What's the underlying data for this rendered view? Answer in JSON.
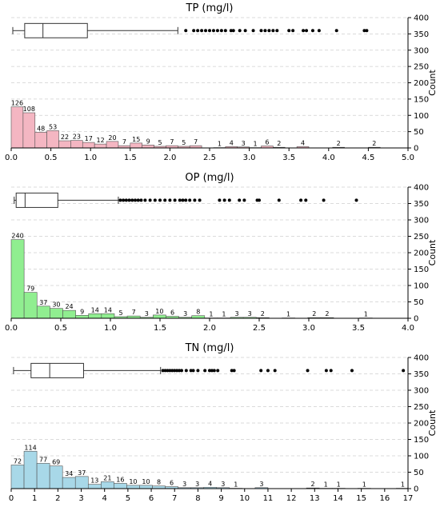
{
  "chart_data": [
    {
      "type": "bar",
      "title": "TP (mg/l)",
      "ylabel": "Count",
      "xlim": [
        0,
        5.0
      ],
      "ylim": [
        0,
        400
      ],
      "xticks": [
        "0.0",
        "0.5",
        "1.0",
        "1.5",
        "2.0",
        "2.5",
        "3.0",
        "3.5",
        "4.0",
        "4.5",
        "5.0"
      ],
      "yticks": [
        "0",
        "50",
        "100",
        "150",
        "200",
        "250",
        "300",
        "350",
        "400"
      ],
      "color": "#f4b6c2",
      "bin_width": 0.15,
      "bins": [
        {
          "x": 0.0,
          "count": 126
        },
        {
          "x": 0.15,
          "count": 108
        },
        {
          "x": 0.3,
          "count": 48
        },
        {
          "x": 0.45,
          "count": 53
        },
        {
          "x": 0.6,
          "count": 22
        },
        {
          "x": 0.75,
          "count": 23
        },
        {
          "x": 0.9,
          "count": 17
        },
        {
          "x": 1.05,
          "count": 12
        },
        {
          "x": 1.2,
          "count": 20
        },
        {
          "x": 1.35,
          "count": 7
        },
        {
          "x": 1.5,
          "count": 15
        },
        {
          "x": 1.65,
          "count": 9
        },
        {
          "x": 1.8,
          "count": 5
        },
        {
          "x": 1.95,
          "count": 7
        },
        {
          "x": 2.1,
          "count": 5
        },
        {
          "x": 2.25,
          "count": 7
        },
        {
          "x": 2.55,
          "count": 1
        },
        {
          "x": 2.7,
          "count": 4
        },
        {
          "x": 2.85,
          "count": 3
        },
        {
          "x": 3.0,
          "count": 1
        },
        {
          "x": 3.15,
          "count": 6
        },
        {
          "x": 3.3,
          "count": 2
        },
        {
          "x": 3.6,
          "count": 4
        },
        {
          "x": 4.05,
          "count": 2
        },
        {
          "x": 4.5,
          "count": 2
        }
      ],
      "box": {
        "whisker_low": 0.02,
        "q1": 0.17,
        "median": 0.4,
        "q3": 0.96,
        "whisker_high": 2.1,
        "level": 360
      },
      "outliers": [
        2.2,
        2.3,
        2.35,
        2.4,
        2.45,
        2.5,
        2.55,
        2.6,
        2.65,
        2.7,
        2.77,
        2.8,
        2.88,
        2.95,
        3.05,
        3.15,
        3.2,
        3.25,
        3.3,
        3.35,
        3.5,
        3.55,
        3.68,
        3.72,
        3.8,
        3.88,
        4.1,
        4.45,
        4.48
      ]
    },
    {
      "type": "bar",
      "title": "OP (mg/l)",
      "ylabel": "Count",
      "xlim": [
        0,
        4.0
      ],
      "ylim": [
        0,
        400
      ],
      "xticks": [
        "0.0",
        "0.5",
        "1.0",
        "1.5",
        "2.0",
        "2.5",
        "3.0",
        "3.5",
        "4.0"
      ],
      "yticks": [
        "0",
        "50",
        "100",
        "150",
        "200",
        "250",
        "300",
        "350",
        "400"
      ],
      "color": "#90ee90",
      "bin_width": 0.13,
      "bins": [
        {
          "x": 0.0,
          "count": 240
        },
        {
          "x": 0.13,
          "count": 79
        },
        {
          "x": 0.26,
          "count": 37
        },
        {
          "x": 0.39,
          "count": 30
        },
        {
          "x": 0.52,
          "count": 24
        },
        {
          "x": 0.65,
          "count": 9
        },
        {
          "x": 0.78,
          "count": 14
        },
        {
          "x": 0.91,
          "count": 14
        },
        {
          "x": 1.04,
          "count": 5
        },
        {
          "x": 1.17,
          "count": 7
        },
        {
          "x": 1.3,
          "count": 3
        },
        {
          "x": 1.43,
          "count": 10
        },
        {
          "x": 1.56,
          "count": 6
        },
        {
          "x": 1.69,
          "count": 3
        },
        {
          "x": 1.82,
          "count": 8
        },
        {
          "x": 1.95,
          "count": 1
        },
        {
          "x": 2.08,
          "count": 1
        },
        {
          "x": 2.21,
          "count": 3
        },
        {
          "x": 2.34,
          "count": 3
        },
        {
          "x": 2.47,
          "count": 2
        },
        {
          "x": 2.73,
          "count": 1
        },
        {
          "x": 2.99,
          "count": 2
        },
        {
          "x": 3.12,
          "count": 2
        },
        {
          "x": 3.51,
          "count": 1
        }
      ],
      "box": {
        "whisker_low": 0.03,
        "q1": 0.05,
        "median": 0.14,
        "q3": 0.47,
        "whisker_high": 1.08,
        "level": 360
      },
      "outliers": [
        1.1,
        1.13,
        1.16,
        1.19,
        1.22,
        1.25,
        1.28,
        1.31,
        1.35,
        1.4,
        1.45,
        1.5,
        1.55,
        1.6,
        1.65,
        1.7,
        1.73,
        1.76,
        1.8,
        1.85,
        1.9,
        2.1,
        2.15,
        2.2,
        2.3,
        2.35,
        2.48,
        2.5,
        2.7,
        2.92,
        2.97,
        3.15,
        3.48
      ]
    },
    {
      "type": "bar",
      "title": "TN (mg/l)",
      "ylabel": "Count",
      "xlim": [
        0,
        17
      ],
      "ylim": [
        0,
        400
      ],
      "xticks": [
        "0",
        "1",
        "2",
        "3",
        "4",
        "5",
        "6",
        "7",
        "8",
        "9",
        "10",
        "11",
        "12",
        "13",
        "14",
        "15",
        "16",
        "17"
      ],
      "yticks": [
        "0",
        "50",
        "100",
        "150",
        "200",
        "250",
        "300",
        "350",
        "400"
      ],
      "color": "#a8d8e8",
      "bin_width": 0.55,
      "bins": [
        {
          "x": 0.0,
          "count": 72
        },
        {
          "x": 0.55,
          "count": 114
        },
        {
          "x": 1.1,
          "count": 77
        },
        {
          "x": 1.65,
          "count": 69
        },
        {
          "x": 2.2,
          "count": 34
        },
        {
          "x": 2.75,
          "count": 37
        },
        {
          "x": 3.3,
          "count": 13
        },
        {
          "x": 3.85,
          "count": 21
        },
        {
          "x": 4.4,
          "count": 16
        },
        {
          "x": 4.95,
          "count": 10
        },
        {
          "x": 5.5,
          "count": 10
        },
        {
          "x": 6.05,
          "count": 8
        },
        {
          "x": 6.6,
          "count": 6
        },
        {
          "x": 7.15,
          "count": 3
        },
        {
          "x": 7.7,
          "count": 3
        },
        {
          "x": 8.25,
          "count": 4
        },
        {
          "x": 8.8,
          "count": 3
        },
        {
          "x": 9.35,
          "count": 1
        },
        {
          "x": 10.45,
          "count": 3
        },
        {
          "x": 12.65,
          "count": 2
        },
        {
          "x": 13.2,
          "count": 1
        },
        {
          "x": 13.75,
          "count": 1
        },
        {
          "x": 14.85,
          "count": 1
        },
        {
          "x": 16.5,
          "count": 1
        }
      ],
      "box": {
        "whisker_low": 0.1,
        "q1": 0.85,
        "median": 1.65,
        "q3": 3.1,
        "whisker_high": 6.4,
        "level": 360
      },
      "outliers": [
        6.5,
        6.6,
        6.7,
        6.8,
        6.9,
        7.0,
        7.1,
        7.2,
        7.3,
        7.5,
        7.7,
        7.8,
        8.0,
        8.3,
        8.5,
        8.6,
        8.7,
        8.85,
        9.45,
        9.55,
        10.7,
        11.0,
        11.3,
        12.7,
        13.5,
        13.7,
        14.6,
        16.8
      ]
    }
  ]
}
